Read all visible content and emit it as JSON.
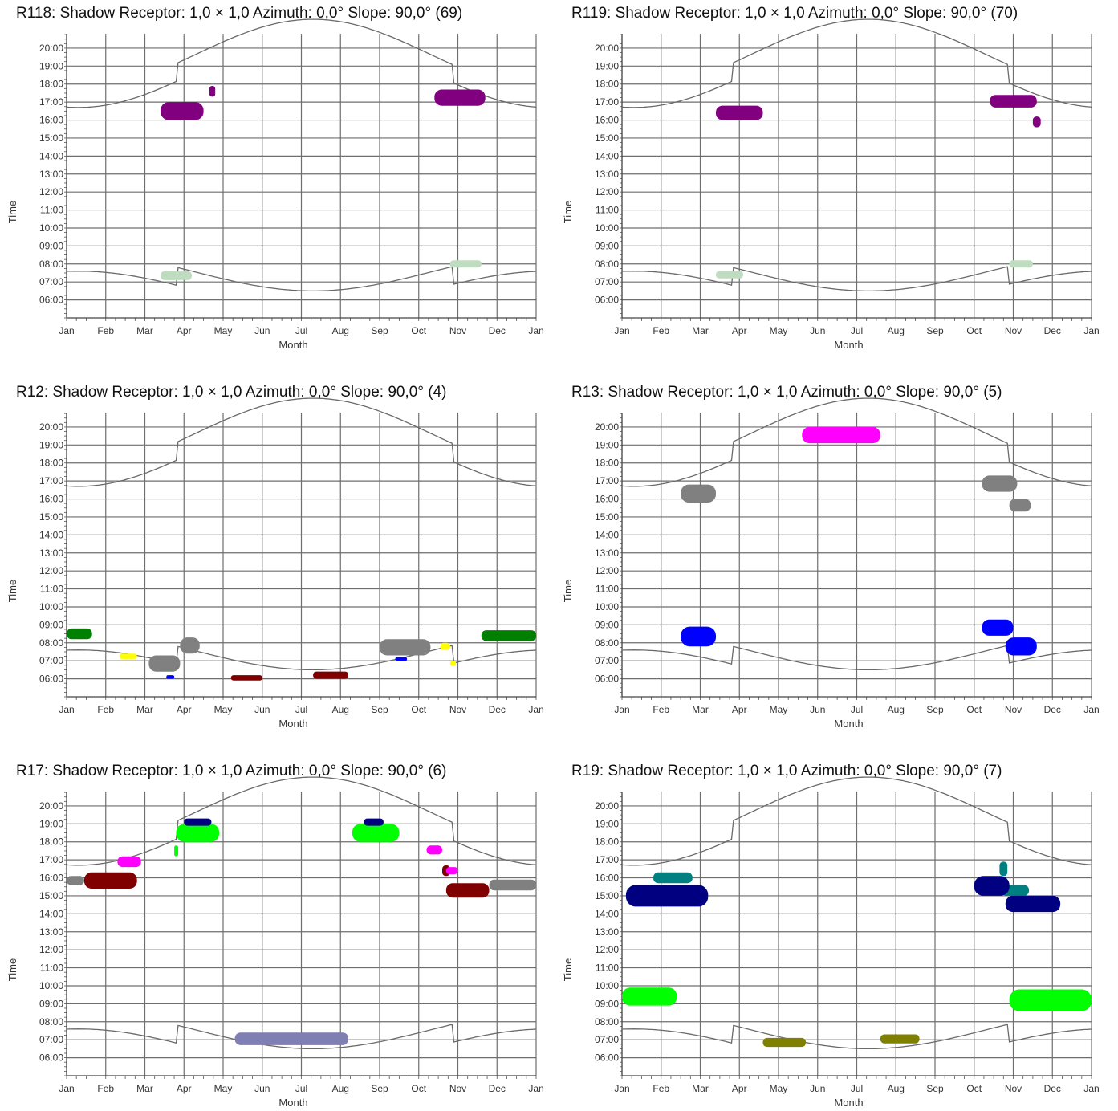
{
  "chart_data": [
    {
      "type": "scatter",
      "title": "R118: Shadow  Receptor: 1,0 × 1,0  Azimuth: 0,0°  Slope: 90,0° (69)",
      "xlabel": "Month",
      "ylabel": "Time",
      "x_ticks": [
        "Jan",
        "Feb",
        "Mar",
        "Apr",
        "May",
        "Jun",
        "Jul",
        "Aug",
        "Sep",
        "Oct",
        "Nov",
        "Dec",
        "Jan"
      ],
      "y_ticks": [
        "06:00",
        "07:00",
        "08:00",
        "09:00",
        "10:00",
        "11:00",
        "12:00",
        "13:00",
        "14:00",
        "15:00",
        "16:00",
        "17:00",
        "18:00",
        "19:00",
        "20:00"
      ],
      "ylim": [
        5.0,
        20.8
      ],
      "grid": true,
      "regions": [
        {
          "color": "#800080",
          "x_start": 2.4,
          "x_end": 3.5,
          "t_start": 16.0,
          "t_end": 17.0
        },
        {
          "color": "#800080",
          "x_start": 3.65,
          "x_end": 3.8,
          "t_start": 17.3,
          "t_end": 17.9
        },
        {
          "color": "#800080",
          "x_start": 9.4,
          "x_end": 10.7,
          "t_start": 16.8,
          "t_end": 17.7
        },
        {
          "color": "#c0dcc0",
          "x_start": 2.4,
          "x_end": 3.2,
          "t_start": 7.1,
          "t_end": 7.6
        },
        {
          "color": "#c0dcc0",
          "x_start": 9.8,
          "x_end": 10.6,
          "t_start": 7.8,
          "t_end": 8.2
        }
      ]
    },
    {
      "type": "scatter",
      "title": "R119: Shadow  Receptor: 1,0 × 1,0  Azimuth: 0,0°  Slope: 90,0° (70)",
      "xlabel": "Month",
      "ylabel": "Time",
      "x_ticks": [
        "Jan",
        "Feb",
        "Mar",
        "Apr",
        "May",
        "Jun",
        "Jul",
        "Aug",
        "Sep",
        "Oct",
        "Nov",
        "Dec",
        "Jan"
      ],
      "y_ticks": [
        "06:00",
        "07:00",
        "08:00",
        "09:00",
        "10:00",
        "11:00",
        "12:00",
        "13:00",
        "14:00",
        "15:00",
        "16:00",
        "17:00",
        "18:00",
        "19:00",
        "20:00"
      ],
      "ylim": [
        5.0,
        20.8
      ],
      "grid": true,
      "regions": [
        {
          "color": "#800080",
          "x_start": 2.4,
          "x_end": 3.6,
          "t_start": 16.0,
          "t_end": 16.8
        },
        {
          "color": "#800080",
          "x_start": 9.4,
          "x_end": 10.6,
          "t_start": 16.7,
          "t_end": 17.4
        },
        {
          "color": "#800080",
          "x_start": 10.5,
          "x_end": 10.7,
          "t_start": 15.6,
          "t_end": 16.2
        },
        {
          "color": "#c0dcc0",
          "x_start": 2.4,
          "x_end": 3.1,
          "t_start": 7.2,
          "t_end": 7.6
        },
        {
          "color": "#c0dcc0",
          "x_start": 9.9,
          "x_end": 10.5,
          "t_start": 7.8,
          "t_end": 8.2
        }
      ]
    },
    {
      "type": "scatter",
      "title": "R12: Shadow  Receptor: 1,0 × 1,0  Azimuth: 0,0°  Slope: 90,0° (4)",
      "xlabel": "Month",
      "ylabel": "Time",
      "x_ticks": [
        "Jan",
        "Feb",
        "Mar",
        "Apr",
        "May",
        "Jun",
        "Jul",
        "Aug",
        "Sep",
        "Oct",
        "Nov",
        "Dec",
        "Jan"
      ],
      "y_ticks": [
        "06:00",
        "07:00",
        "08:00",
        "09:00",
        "10:00",
        "11:00",
        "12:00",
        "13:00",
        "14:00",
        "15:00",
        "16:00",
        "17:00",
        "18:00",
        "19:00",
        "20:00"
      ],
      "ylim": [
        5.0,
        20.8
      ],
      "grid": true,
      "regions": [
        {
          "color": "#008000",
          "x_start": 0.0,
          "x_end": 0.65,
          "t_start": 8.2,
          "t_end": 8.8
        },
        {
          "color": "#008000",
          "x_start": 10.6,
          "x_end": 12.0,
          "t_start": 8.1,
          "t_end": 8.7
        },
        {
          "color": "#ffff00",
          "x_start": 1.35,
          "x_end": 1.8,
          "t_start": 7.1,
          "t_end": 7.4
        },
        {
          "color": "#ffff00",
          "x_start": 9.55,
          "x_end": 9.8,
          "t_start": 7.6,
          "t_end": 8.0
        },
        {
          "color": "#ffff00",
          "x_start": 9.8,
          "x_end": 9.95,
          "t_start": 6.7,
          "t_end": 7.0
        },
        {
          "color": "#808080",
          "x_start": 2.1,
          "x_end": 2.9,
          "t_start": 6.4,
          "t_end": 7.3
        },
        {
          "color": "#808080",
          "x_start": 2.9,
          "x_end": 3.4,
          "t_start": 7.4,
          "t_end": 8.3
        },
        {
          "color": "#808080",
          "x_start": 8.0,
          "x_end": 9.3,
          "t_start": 7.3,
          "t_end": 8.2
        },
        {
          "color": "#0000ff",
          "x_start": 2.55,
          "x_end": 2.75,
          "t_start": 6.0,
          "t_end": 6.2
        },
        {
          "color": "#0000ff",
          "x_start": 8.4,
          "x_end": 8.7,
          "t_start": 7.0,
          "t_end": 7.2
        },
        {
          "color": "#800000",
          "x_start": 4.2,
          "x_end": 5.0,
          "t_start": 5.9,
          "t_end": 6.2
        },
        {
          "color": "#800000",
          "x_start": 6.3,
          "x_end": 7.2,
          "t_start": 6.0,
          "t_end": 6.4
        }
      ]
    },
    {
      "type": "scatter",
      "title": "R13: Shadow  Receptor: 1,0 × 1,0  Azimuth: 0,0°  Slope: 90,0° (5)",
      "xlabel": "Month",
      "ylabel": "Time",
      "x_ticks": [
        "Jan",
        "Feb",
        "Mar",
        "Apr",
        "May",
        "Jun",
        "Jul",
        "Aug",
        "Sep",
        "Oct",
        "Nov",
        "Dec",
        "Jan"
      ],
      "y_ticks": [
        "06:00",
        "07:00",
        "08:00",
        "09:00",
        "10:00",
        "11:00",
        "12:00",
        "13:00",
        "14:00",
        "15:00",
        "16:00",
        "17:00",
        "18:00",
        "19:00",
        "20:00"
      ],
      "ylim": [
        5.0,
        20.8
      ],
      "grid": true,
      "regions": [
        {
          "color": "#ff00ff",
          "x_start": 4.6,
          "x_end": 6.6,
          "t_start": 19.1,
          "t_end": 20.0
        },
        {
          "color": "#808080",
          "x_start": 1.5,
          "x_end": 2.4,
          "t_start": 15.8,
          "t_end": 16.8
        },
        {
          "color": "#808080",
          "x_start": 9.2,
          "x_end": 10.1,
          "t_start": 16.4,
          "t_end": 17.3
        },
        {
          "color": "#808080",
          "x_start": 9.9,
          "x_end": 10.45,
          "t_start": 15.3,
          "t_end": 16.0
        },
        {
          "color": "#0000ff",
          "x_start": 1.5,
          "x_end": 2.4,
          "t_start": 7.8,
          "t_end": 8.9
        },
        {
          "color": "#0000ff",
          "x_start": 9.2,
          "x_end": 10.0,
          "t_start": 8.4,
          "t_end": 9.3
        },
        {
          "color": "#0000ff",
          "x_start": 9.8,
          "x_end": 10.6,
          "t_start": 7.3,
          "t_end": 8.3
        }
      ]
    },
    {
      "type": "scatter",
      "title": "R17: Shadow  Receptor: 1,0 × 1,0  Azimuth: 0,0°  Slope: 90,0° (6)",
      "xlabel": "Month",
      "ylabel": "Time",
      "x_ticks": [
        "Jan",
        "Feb",
        "Mar",
        "Apr",
        "May",
        "Jun",
        "Jul",
        "Aug",
        "Sep",
        "Oct",
        "Nov",
        "Dec",
        "Jan"
      ],
      "y_ticks": [
        "06:00",
        "07:00",
        "08:00",
        "09:00",
        "10:00",
        "11:00",
        "12:00",
        "13:00",
        "14:00",
        "15:00",
        "16:00",
        "17:00",
        "18:00",
        "19:00",
        "20:00"
      ],
      "ylim": [
        5.0,
        20.8
      ],
      "grid": true,
      "regions": [
        {
          "color": "#808080",
          "x_start": 0.0,
          "x_end": 0.45,
          "t_start": 15.6,
          "t_end": 16.1
        },
        {
          "color": "#808080",
          "x_start": 10.8,
          "x_end": 12.0,
          "t_start": 15.3,
          "t_end": 15.9
        },
        {
          "color": "#800000",
          "x_start": 0.45,
          "x_end": 1.8,
          "t_start": 15.4,
          "t_end": 16.3
        },
        {
          "color": "#800000",
          "x_start": 9.7,
          "x_end": 10.8,
          "t_start": 14.9,
          "t_end": 15.7
        },
        {
          "color": "#800000",
          "x_start": 9.6,
          "x_end": 9.8,
          "t_start": 16.1,
          "t_end": 16.7
        },
        {
          "color": "#ff00ff",
          "x_start": 1.3,
          "x_end": 1.9,
          "t_start": 16.6,
          "t_end": 17.2
        },
        {
          "color": "#ff00ff",
          "x_start": 9.2,
          "x_end": 9.6,
          "t_start": 17.3,
          "t_end": 17.8
        },
        {
          "color": "#ff00ff",
          "x_start": 9.7,
          "x_end": 10.0,
          "t_start": 16.2,
          "t_end": 16.6
        },
        {
          "color": "#00ff00",
          "x_start": 2.75,
          "x_end": 2.85,
          "t_start": 17.2,
          "t_end": 17.8
        },
        {
          "color": "#00ff00",
          "x_start": 2.8,
          "x_end": 3.9,
          "t_start": 18.0,
          "t_end": 19.0
        },
        {
          "color": "#00ff00",
          "x_start": 7.3,
          "x_end": 8.5,
          "t_start": 18.0,
          "t_end": 19.0
        },
        {
          "color": "#000080",
          "x_start": 3.0,
          "x_end": 3.7,
          "t_start": 18.9,
          "t_end": 19.3
        },
        {
          "color": "#000080",
          "x_start": 7.6,
          "x_end": 8.1,
          "t_start": 18.9,
          "t_end": 19.3
        },
        {
          "color": "#7f7fb3",
          "x_start": 4.3,
          "x_end": 7.2,
          "t_start": 6.7,
          "t_end": 7.4
        }
      ]
    },
    {
      "type": "scatter",
      "title": "R19: Shadow  Receptor: 1,0 × 1,0  Azimuth: 0,0°  Slope: 90,0° (7)",
      "xlabel": "Month",
      "ylabel": "Time",
      "x_ticks": [
        "Jan",
        "Feb",
        "Mar",
        "Apr",
        "May",
        "Jun",
        "Jul",
        "Aug",
        "Sep",
        "Oct",
        "Nov",
        "Dec",
        "Jan"
      ],
      "y_ticks": [
        "06:00",
        "07:00",
        "08:00",
        "09:00",
        "10:00",
        "11:00",
        "12:00",
        "13:00",
        "14:00",
        "15:00",
        "16:00",
        "17:00",
        "18:00",
        "19:00",
        "20:00"
      ],
      "ylim": [
        5.0,
        20.8
      ],
      "grid": true,
      "regions": [
        {
          "color": "#008080",
          "x_start": 0.8,
          "x_end": 1.8,
          "t_start": 15.7,
          "t_end": 16.3
        },
        {
          "color": "#008080",
          "x_start": 9.7,
          "x_end": 10.4,
          "t_start": 15.0,
          "t_end": 15.6
        },
        {
          "color": "#008080",
          "x_start": 9.65,
          "x_end": 9.85,
          "t_start": 16.1,
          "t_end": 16.9
        },
        {
          "color": "#000080",
          "x_start": 0.1,
          "x_end": 2.2,
          "t_start": 14.4,
          "t_end": 15.6
        },
        {
          "color": "#000080",
          "x_start": 9.0,
          "x_end": 9.9,
          "t_start": 15.0,
          "t_end": 16.1
        },
        {
          "color": "#000080",
          "x_start": 9.8,
          "x_end": 11.2,
          "t_start": 14.1,
          "t_end": 15.0
        },
        {
          "color": "#00ff00",
          "x_start": 0.0,
          "x_end": 1.4,
          "t_start": 8.9,
          "t_end": 9.9
        },
        {
          "color": "#00ff00",
          "x_start": 9.9,
          "x_end": 12.0,
          "t_start": 8.6,
          "t_end": 9.8
        },
        {
          "color": "#808000",
          "x_start": 3.6,
          "x_end": 4.7,
          "t_start": 6.6,
          "t_end": 7.1
        },
        {
          "color": "#808000",
          "x_start": 6.6,
          "x_end": 7.6,
          "t_start": 6.8,
          "t_end": 7.3
        }
      ]
    }
  ]
}
